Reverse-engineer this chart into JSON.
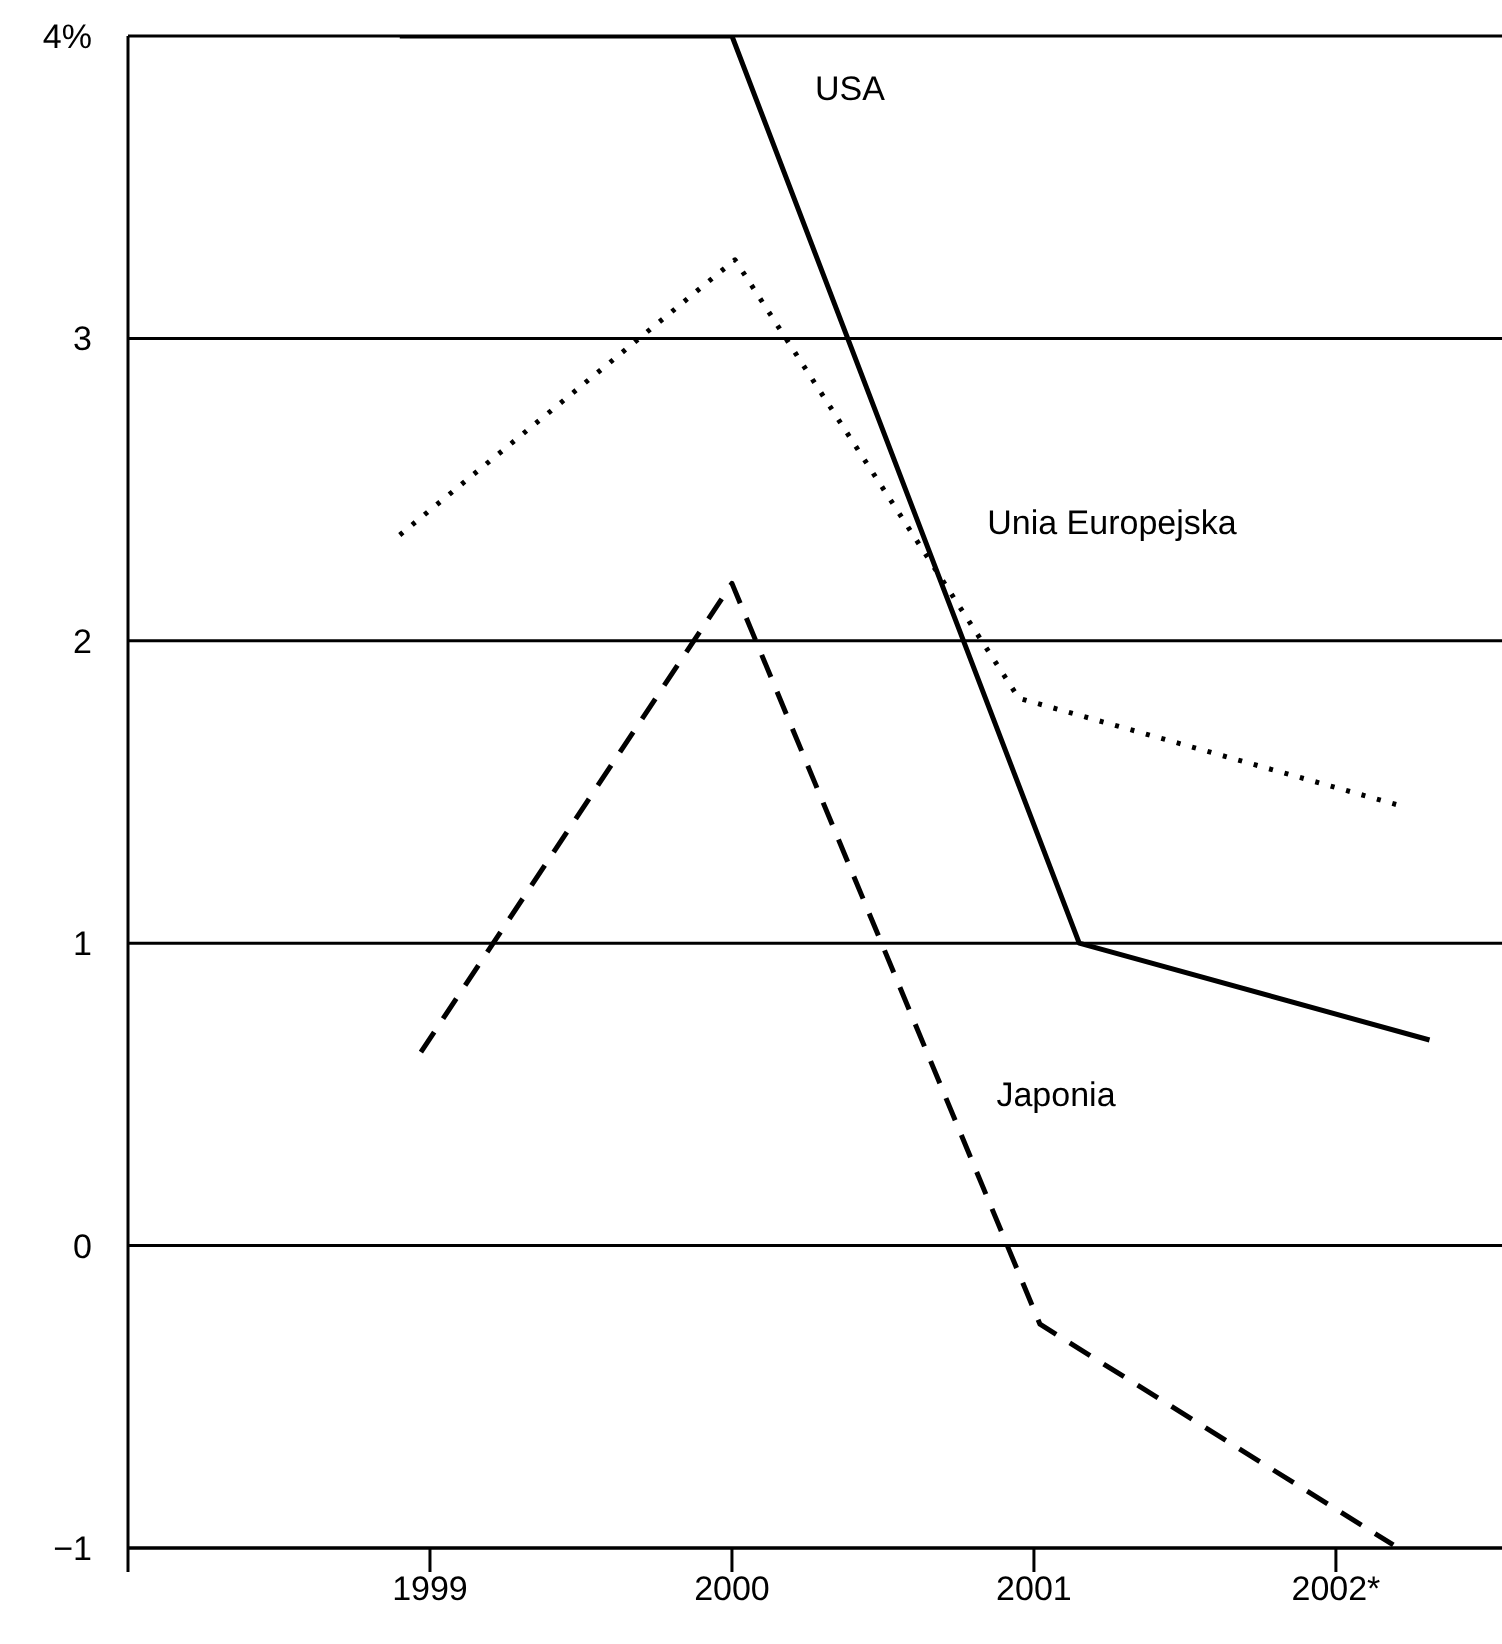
{
  "chart_data": {
    "type": "line",
    "xlim": [
      1998,
      2002.55
    ],
    "xticks": [
      {
        "value": 1998,
        "label": null
      },
      1999,
      2000,
      2001,
      {
        "value": 2002,
        "label": "2002*"
      }
    ],
    "ylim": [
      -1,
      4
    ],
    "yticks": [
      {
        "value": -1,
        "label": "−1"
      },
      0,
      1,
      2,
      3,
      {
        "value": 4,
        "label": "4%"
      }
    ],
    "grid": "y",
    "marker": "none",
    "series": [
      {
        "name": "USA",
        "color": "#000000",
        "line_style": "solid",
        "x": [
          1998.9,
          2000.0,
          2001.15,
          2002.31
        ],
        "values": [
          4.0,
          4.0,
          1.0,
          0.68
        ]
      },
      {
        "name": "Unia Europejska",
        "color": "#000000",
        "line_style": "dotted",
        "x": [
          1998.9,
          2000.01,
          2000.95,
          2002.23
        ],
        "values": [
          2.35,
          3.26,
          1.81,
          1.45
        ]
      },
      {
        "name": "Japonia",
        "color": "#000000",
        "line_style": "dashed",
        "x": [
          1998.97,
          2000.0,
          2001.02,
          2002.19
        ],
        "values": [
          0.64,
          2.19,
          -0.26,
          -0.99
        ]
      }
    ]
  }
}
